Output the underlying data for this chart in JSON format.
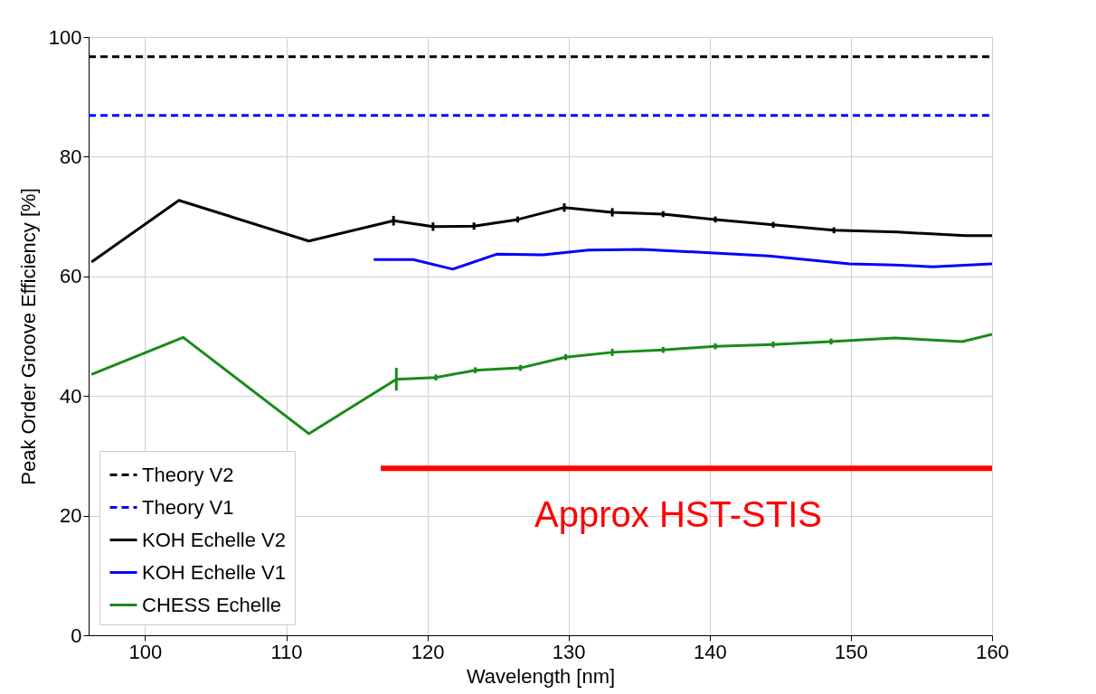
{
  "chart_data": {
    "type": "line",
    "xlabel": "Wavelength [nm]",
    "ylabel": "Peak Order Groove Efficiency [%]",
    "xlim": [
      96,
      160
    ],
    "xticks": [
      100,
      110,
      120,
      130,
      140,
      150,
      160
    ],
    "ylim": [
      0,
      100
    ],
    "yticks": [
      0,
      20,
      40,
      60,
      80,
      100
    ],
    "grid": true,
    "legend": "bottom left",
    "marker": "none",
    "series": [
      {
        "name": "Theory V2",
        "color": "#000000",
        "line_style": "dashed",
        "x": [
          96,
          160
        ],
        "values": [
          96.7,
          96.7
        ]
      },
      {
        "name": "Theory V1",
        "color": "#0000ff",
        "line_style": "dashed",
        "x": [
          96,
          160
        ],
        "values": [
          86.9,
          86.9
        ]
      },
      {
        "name": "KOH Echelle V2",
        "color": "#000000",
        "line_style": "solid",
        "x": [
          96.2,
          102.4,
          111.6,
          117.6,
          120.4,
          123.3,
          126.4,
          129.7,
          133.1,
          136.7,
          140.4,
          144.5,
          148.8,
          153.3,
          158.1,
          160
        ],
        "values": [
          62.4,
          72.7,
          65.9,
          69.3,
          68.3,
          68.4,
          69.5,
          71.5,
          70.7,
          70.4,
          69.5,
          68.6,
          67.7,
          67.4,
          66.8,
          66.8
        ],
        "errors": [
          null,
          null,
          null,
          0.8,
          0.7,
          0.6,
          0.5,
          0.7,
          0.7,
          0.5,
          0.5,
          0.5,
          0.5,
          null,
          null,
          null
        ]
      },
      {
        "name": "KOH Echelle V1",
        "color": "#0000ff",
        "line_style": "solid",
        "x": [
          116.2,
          119,
          121.8,
          124.9,
          128.2,
          131.4,
          135.2,
          140.3,
          144.2,
          149.9,
          153.1,
          155.8,
          160
        ],
        "values": [
          62.8,
          62.8,
          61.2,
          63.7,
          63.6,
          64.4,
          64.5,
          63.9,
          63.4,
          62.1,
          61.9,
          61.6,
          62.1
        ]
      },
      {
        "name": "CHESS Echelle",
        "color": "#1a8a1a",
        "line_style": "solid",
        "x": [
          96.2,
          102.7,
          111.6,
          117.8,
          120.6,
          123.4,
          126.6,
          129.8,
          133.1,
          136.7,
          140.4,
          144.5,
          148.6,
          153.1,
          157.9,
          160
        ],
        "values": [
          43.6,
          49.8,
          33.7,
          42.8,
          43.1,
          44.3,
          44.7,
          46.5,
          47.3,
          47.7,
          48.3,
          48.6,
          49.1,
          49.7,
          49.1,
          50.3
        ],
        "errors": [
          null,
          null,
          null,
          1.9,
          0.5,
          0.5,
          0.5,
          0.5,
          0.6,
          0.5,
          0.5,
          0.5,
          0.5,
          null,
          null,
          null
        ]
      },
      {
        "color": "#ff0000",
        "line_style": "solid",
        "x": [
          116.7,
          160
        ],
        "values": [
          27.9,
          27.9
        ]
      }
    ],
    "annotations": [
      "Approx HST-STIS"
    ]
  }
}
